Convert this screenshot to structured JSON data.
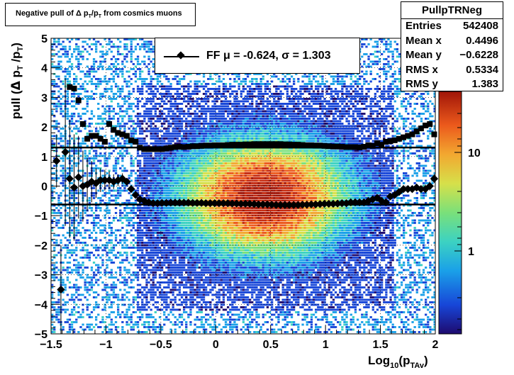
{
  "title": "Negative pull of Δ p_T/p_T from cosmics muons",
  "title_parts": {
    "a": "Negative pull of Δ p",
    "b": "T",
    "c": "/p",
    "d": "T",
    "e": " from cosmics muons"
  },
  "stats": {
    "name": "PullpTRNeg",
    "rows": [
      {
        "label": "Entries",
        "value": "542408"
      },
      {
        "label": "Mean x",
        "value": "0.4496"
      },
      {
        "label": "Mean y",
        "value": "−0.6228"
      },
      {
        "label": "RMS x",
        "value": "0.5334"
      },
      {
        "label": "RMS y",
        "value": "1.383"
      }
    ]
  },
  "legend": {
    "text": "FF μ = -0.624, σ =   1.303"
  },
  "colors": {
    "marker": "#000000",
    "band_line": "#000000",
    "frame": "#000000"
  },
  "chart_data": {
    "type": "heatmap",
    "title": "Negative pull of Δ p_T/p_T from cosmics muons",
    "xlabel": "Log10(pTAv)",
    "ylabel": "pull (Δ p_T /p_T)",
    "xlim": [
      -1.5,
      2.0
    ],
    "ylim": [
      -5,
      5
    ],
    "x_ticks": [
      "−1.5",
      "−1",
      "−0.5",
      "0",
      "0.5",
      "1",
      "1.5",
      "2"
    ],
    "y_ticks": [
      "−5",
      "−4",
      "−3",
      "−2",
      "−1",
      "0",
      "1",
      "2",
      "3",
      "4",
      "5"
    ],
    "z_scale": "log",
    "z_ticks": [
      "1",
      "10"
    ],
    "grid": true,
    "horizontal_lines": [
      1.303,
      -0.624
    ],
    "series": [
      {
        "name": "FF",
        "x": [
          -1.45,
          -1.41,
          -1.37,
          -1.33,
          -1.29,
          -1.25,
          -1.21,
          -1.17,
          -1.13,
          -1.09,
          -1.05,
          -1.01,
          -0.97,
          -0.93,
          -0.89,
          -0.85,
          -0.81,
          -0.77,
          -0.73,
          -0.69,
          -0.65,
          -0.61,
          -0.57,
          -0.53,
          -0.49,
          -0.45,
          -0.41,
          -0.37,
          -0.33,
          -0.29,
          -0.25,
          -0.21,
          -0.17,
          -0.13,
          -0.09,
          -0.05,
          -0.01,
          0.03,
          0.07,
          0.11,
          0.15,
          0.19,
          0.23,
          0.27,
          0.31,
          0.35,
          0.39,
          0.43,
          0.47,
          0.51,
          0.55,
          0.59,
          0.63,
          0.67,
          0.71,
          0.75,
          0.79,
          0.83,
          0.87,
          0.91,
          0.95,
          0.99,
          1.03,
          1.07,
          1.11,
          1.15,
          1.19,
          1.23,
          1.27,
          1.31,
          1.35,
          1.39,
          1.43,
          1.47,
          1.51,
          1.55,
          1.59,
          1.63,
          1.67,
          1.71,
          1.75,
          1.79,
          1.83,
          1.87,
          1.91,
          1.95,
          1.99
        ],
        "y": [
          0.85,
          -3.5,
          1.15,
          0.25,
          -0.05,
          0.3,
          0.0,
          0.05,
          0.15,
          0.1,
          0.2,
          0.2,
          0.2,
          0.15,
          0.2,
          0.25,
          0.15,
          -0.1,
          -0.3,
          -0.45,
          -0.5,
          -0.55,
          -0.58,
          -0.58,
          -0.57,
          -0.57,
          -0.56,
          -0.56,
          -0.56,
          -0.56,
          -0.56,
          -0.57,
          -0.57,
          -0.57,
          -0.58,
          -0.58,
          -0.58,
          -0.58,
          -0.58,
          -0.58,
          -0.59,
          -0.59,
          -0.6,
          -0.6,
          -0.6,
          -0.61,
          -0.62,
          -0.62,
          -0.62,
          -0.63,
          -0.64,
          -0.64,
          -0.64,
          -0.64,
          -0.64,
          -0.64,
          -0.63,
          -0.63,
          -0.62,
          -0.62,
          -0.61,
          -0.6,
          -0.6,
          -0.6,
          -0.59,
          -0.58,
          -0.58,
          -0.55,
          -0.55,
          -0.55,
          -0.55,
          -0.5,
          -0.45,
          -0.4,
          -0.5,
          -0.55,
          -0.35,
          -0.3,
          -0.2,
          -0.1,
          -0.1,
          -0.1,
          -0.05,
          -0.1,
          -0.1,
          0.0,
          0.25
        ],
        "yerr": [
          0.9,
          1.5,
          2.5,
          2.0,
          1.8,
          1.4,
          1.2,
          0.9,
          0.7,
          0.5,
          0.4,
          0.35,
          0.3,
          0.25,
          0.2,
          0.18,
          0.12,
          0.08,
          0.05,
          0.04,
          0.03,
          0.02,
          0.02,
          0.02,
          0.02,
          0.02,
          0.02,
          0.02,
          0.02,
          0.02,
          0.02,
          0.02,
          0.02,
          0.02,
          0.02,
          0.02,
          0.02,
          0.02,
          0.02,
          0.02,
          0.02,
          0.02,
          0.02,
          0.02,
          0.02,
          0.02,
          0.02,
          0.02,
          0.02,
          0.02,
          0.02,
          0.02,
          0.02,
          0.02,
          0.02,
          0.02,
          0.02,
          0.02,
          0.02,
          0.02,
          0.02,
          0.02,
          0.02,
          0.02,
          0.02,
          0.02,
          0.02,
          0.02,
          0.03,
          0.03,
          0.03,
          0.03,
          0.04,
          0.04,
          0.05,
          0.05,
          0.06,
          0.06,
          0.08,
          0.08,
          0.1,
          0.1,
          0.12,
          0.12,
          0.15,
          0.15,
          0.15
        ],
        "rms": [
          null,
          null,
          null,
          3.35,
          3.3,
          2.9,
          2.1,
          1.6,
          1.7,
          1.7,
          1.6,
          1.5,
          2.1,
          1.9,
          1.8,
          1.75,
          1.7,
          1.55,
          1.5,
          1.3,
          1.25,
          1.25,
          1.25,
          1.25,
          1.25,
          1.27,
          1.3,
          1.32,
          1.33,
          1.32,
          1.33,
          1.35,
          1.35,
          1.36,
          1.37,
          1.37,
          1.38,
          1.38,
          1.38,
          1.39,
          1.4,
          1.4,
          1.4,
          1.41,
          1.41,
          1.42,
          1.42,
          1.42,
          1.42,
          1.42,
          1.42,
          1.42,
          1.41,
          1.41,
          1.4,
          1.4,
          1.39,
          1.38,
          1.38,
          1.37,
          1.37,
          1.36,
          1.35,
          1.34,
          1.34,
          1.33,
          1.32,
          1.32,
          1.32,
          1.31,
          1.33,
          1.38,
          1.36,
          1.45,
          1.4,
          1.5,
          1.52,
          1.55,
          1.6,
          1.65,
          1.7,
          1.75,
          1.85,
          1.95,
          2.05,
          2.1,
          1.75
        ]
      }
    ]
  }
}
